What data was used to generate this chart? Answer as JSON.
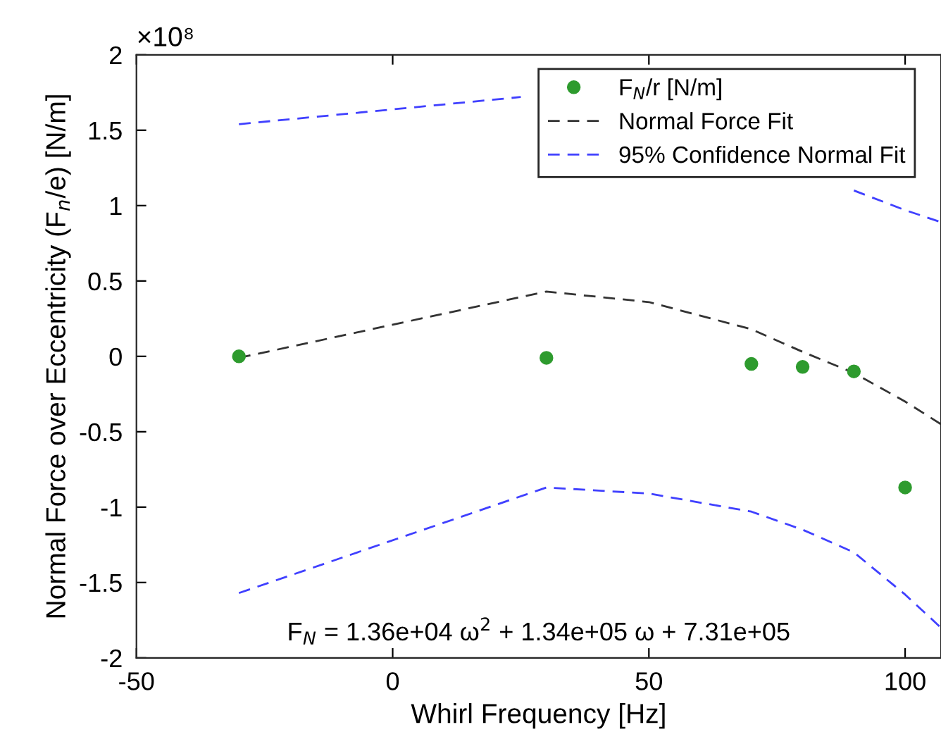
{
  "chart_data": {
    "type": "line",
    "xlabel": "Whirl Frequency [Hz]",
    "ylabel": "Normal Force over Eccentricity (F$_{n}$/e) [N/m]",
    "xlim": [
      -50,
      107
    ],
    "xticks": [
      -50,
      0,
      50,
      100
    ],
    "ylim": [
      -2,
      2
    ],
    "yticks": [
      -2,
      -1.5,
      -1,
      -0.5,
      0,
      0.5,
      1,
      1.5,
      2
    ],
    "annotations": [
      "×10⁸",
      "F$_{N}$ = 1.36e+04 ω$^{2}$ + 1.34e+05 ω + 7.31e+05"
    ],
    "grid": false,
    "legend": "top right",
    "line_style": "dashed",
    "series": [
      {
        "name": "F$_{N}$/r [N/m]",
        "type": "scatter",
        "marker": "circle",
        "color": "#2e9b2e",
        "x": [
          -30,
          30,
          70,
          80,
          90,
          100
        ],
        "values": [
          0,
          -0.01,
          -0.05,
          -0.07,
          -0.1,
          -0.87
        ]
      },
      {
        "name": "Normal Force Fit",
        "color": "#333333",
        "x": [
          -30,
          30,
          50,
          70,
          80,
          90,
          100,
          107
        ],
        "values": [
          -0.01,
          0.43,
          0.36,
          0.18,
          0.03,
          -0.11,
          -0.3,
          -0.45
        ]
      },
      {
        "name": "95% Confidence Normal Fit",
        "color": "#4040ff",
        "x": [
          -30,
          25,
          50,
          70,
          80,
          90,
          100,
          107
        ],
        "values": [
          1.54,
          1.72,
          null,
          null,
          null,
          1.1,
          0.97,
          0.89
        ]
      },
      {
        "color": "#4040ff",
        "x": [
          -30,
          30,
          50,
          70,
          80,
          90,
          100,
          107
        ],
        "values": [
          -1.57,
          -0.87,
          -0.91,
          -1.03,
          -1.15,
          -1.3,
          -1.58,
          -1.8
        ]
      }
    ]
  }
}
